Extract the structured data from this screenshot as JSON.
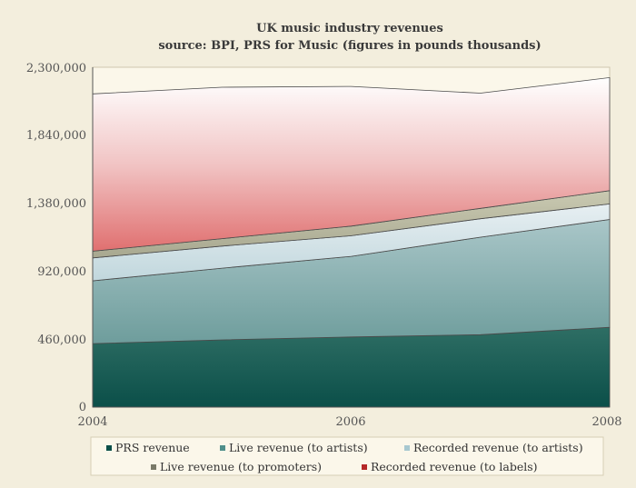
{
  "chart_data": {
    "type": "area",
    "stacked": true,
    "title": "UK music industry revenues",
    "subtitle": "source: BPI, PRS for Music (figures in pounds thousands)",
    "x": [
      2004,
      2005,
      2006,
      2007,
      2008
    ],
    "x_ticks": [
      "2004",
      "2006",
      "2008"
    ],
    "y_ticks": [
      "0",
      "460,000",
      "920,000",
      "1,380,000",
      "1,840,000",
      "2,300,000"
    ],
    "ylim": [
      0,
      2300000
    ],
    "xlim": [
      2004,
      2008
    ],
    "grid": false,
    "legend_position": "bottom",
    "series": [
      {
        "name": "PRS revenue",
        "color": "#0b4f49",
        "values": [
          430000,
          455000,
          475000,
          490000,
          540000
        ]
      },
      {
        "name": "Live revenue (to artists)",
        "color": "#4f8f8a",
        "values": [
          425000,
          485000,
          545000,
          660000,
          730000
        ]
      },
      {
        "name": "Recorded revenue (to artists)",
        "color": "#a7c8d0",
        "values": [
          155000,
          150000,
          140000,
          125000,
          105000
        ]
      },
      {
        "name": "Live revenue (to promoters)",
        "color": "#7a7a68",
        "values": [
          45000,
          50000,
          65000,
          70000,
          90000
        ]
      },
      {
        "name": "Recorded revenue (to labels)",
        "color": "#b52828",
        "values": [
          1065000,
          1025000,
          945000,
          780000,
          765000
        ]
      }
    ]
  }
}
